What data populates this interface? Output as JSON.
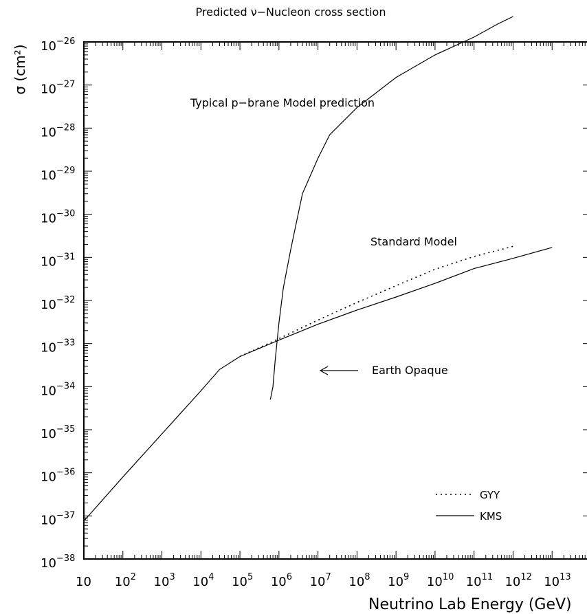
{
  "chart_data": {
    "type": "line",
    "title": "Predicted ν−Nucleon cross section",
    "xlabel": "Neutrino Lab Energy (GeV)",
    "ylabel": "σ (cm²)",
    "x_scale": "log",
    "y_scale": "log",
    "xlim": [
      10,
      100000000000000
    ],
    "ylim": [
      1e-38,
      1e-26
    ],
    "x_ticks": [
      {
        "base": "10",
        "exp": ""
      },
      {
        "base": "10",
        "exp": "2"
      },
      {
        "base": "10",
        "exp": "3"
      },
      {
        "base": "10",
        "exp": "4"
      },
      {
        "base": "10",
        "exp": "5"
      },
      {
        "base": "10",
        "exp": "6"
      },
      {
        "base": "10",
        "exp": "7"
      },
      {
        "base": "10",
        "exp": "8"
      },
      {
        "base": "10",
        "exp": "9"
      },
      {
        "base": "10",
        "exp": "10"
      },
      {
        "base": "10",
        "exp": "11"
      },
      {
        "base": "10",
        "exp": "12"
      },
      {
        "base": "10",
        "exp": "13"
      }
    ],
    "y_ticks": [
      {
        "base": "10",
        "exp": "−26"
      },
      {
        "base": "10",
        "exp": "−27"
      },
      {
        "base": "10",
        "exp": "−28"
      },
      {
        "base": "10",
        "exp": "−29"
      },
      {
        "base": "10",
        "exp": "−30"
      },
      {
        "base": "10",
        "exp": "−31"
      },
      {
        "base": "10",
        "exp": "−32"
      },
      {
        "base": "10",
        "exp": "−33"
      },
      {
        "base": "10",
        "exp": "−34"
      },
      {
        "base": "10",
        "exp": "−35"
      },
      {
        "base": "10",
        "exp": "−36"
      },
      {
        "base": "10",
        "exp": "−37"
      },
      {
        "base": "10",
        "exp": "−38"
      }
    ],
    "series": [
      {
        "name": "KMS",
        "style": "solid",
        "x": [
          10,
          100,
          1000,
          10000,
          30000,
          100000,
          300000,
          1000000,
          10000000,
          100000000,
          1000000000,
          10000000000,
          100000000000,
          1000000000000,
          10000000000000
        ],
        "y": [
          7.6e-38,
          8e-37,
          8e-36,
          8e-35,
          2.5e-34,
          5e-34,
          7.6e-34,
          1.2e-33,
          2.8e-33,
          6e-33,
          1.2e-32,
          2.5e-32,
          5.5e-32,
          9.5e-32,
          1.7e-31
        ]
      },
      {
        "name": "GYY",
        "style": "dotted",
        "x": [
          100000,
          1000000,
          10000000,
          100000000,
          1000000000,
          10000000000,
          100000000000,
          1000000000000
        ],
        "y": [
          5e-34,
          1.3e-33,
          3.5e-33,
          9e-33,
          2.2e-32,
          5.3e-32,
          1.05e-31,
          1.8e-31
        ]
      },
      {
        "style": "solid",
        "x": [
          600000,
          700000,
          800000,
          1000000,
          1300000,
          2000000,
          4000000,
          10000000,
          20000000,
          100000000,
          1000000000,
          10000000000,
          100000000000,
          400000000000,
          1000000000000
        ],
        "y": [
          5e-35,
          1e-34,
          4e-34,
          3e-33,
          2e-32,
          1.5e-31,
          3e-30,
          2e-29,
          7e-29,
          3e-28,
          1.5e-27,
          5e-27,
          1.3e-26,
          2.6e-26,
          3.9e-26
        ]
      }
    ],
    "annotations": {
      "pbrane_label": "Typical p−brane Model prediction",
      "sm_label": "Standard Model",
      "earth_label": "Earth Opaque"
    },
    "legend": {
      "placement": "bottom-right",
      "items": [
        {
          "label": "GYY",
          "style": "dotted"
        },
        {
          "label": "KMS",
          "style": "solid"
        }
      ]
    },
    "grid": false
  }
}
